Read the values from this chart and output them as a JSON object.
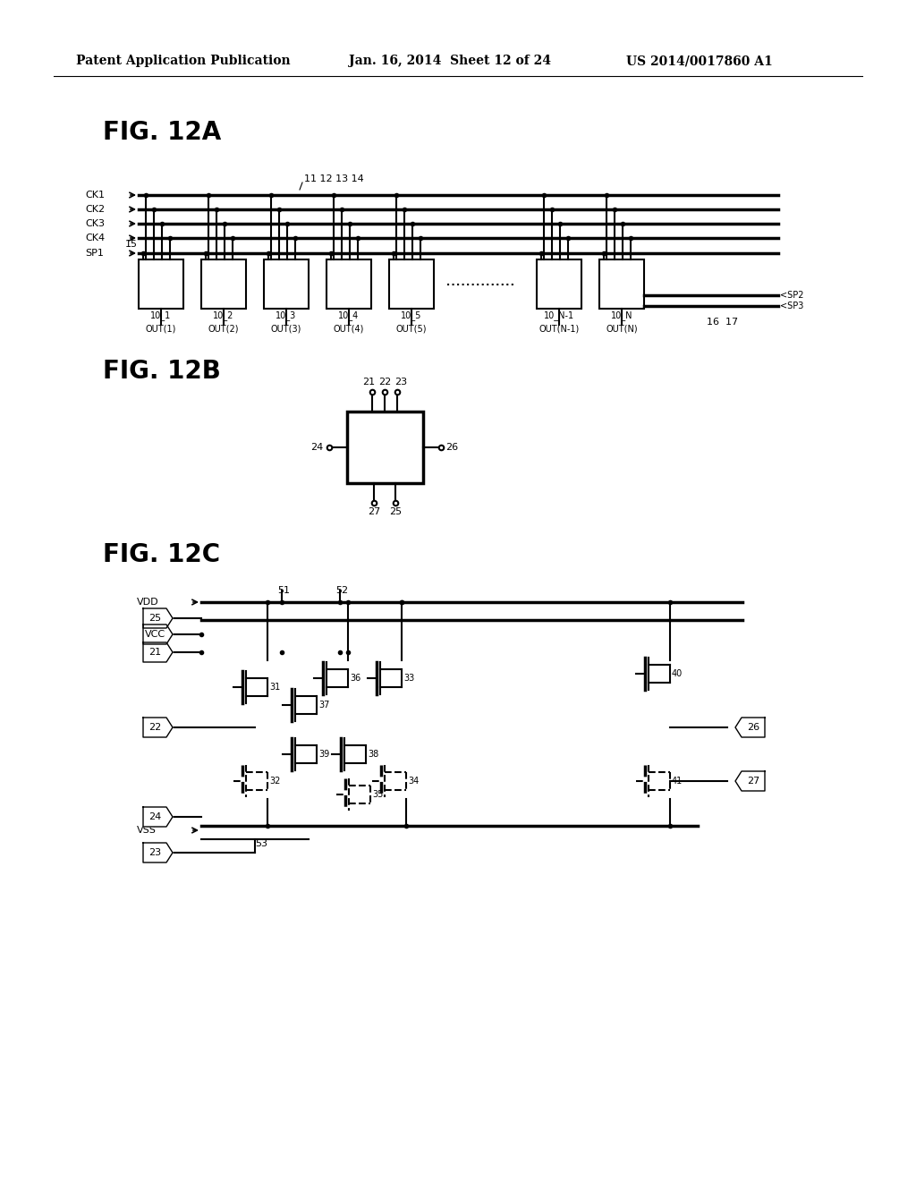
{
  "background_color": "#ffffff",
  "header_text": "Patent Application Publication",
  "header_date": "Jan. 16, 2014  Sheet 12 of 24",
  "header_patent": "US 2014/0017860 A1",
  "fig12a_label": "FIG. 12A",
  "fig12b_label": "FIG. 12B",
  "fig12c_label": "FIG. 12C"
}
